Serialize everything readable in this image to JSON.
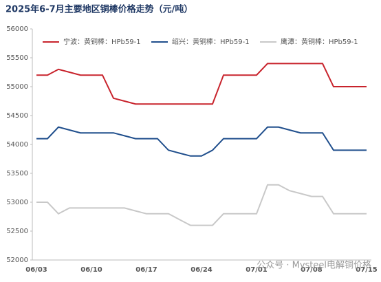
{
  "chart_data": {
    "type": "line",
    "title": "2025年6-7月主要地区铜棒价格走势（元/吨）",
    "annotation": "公众号 · Mysteel电解铜价格",
    "categories": [
      "06/03",
      null,
      null,
      null,
      null,
      "06/10",
      null,
      null,
      null,
      null,
      "06/17",
      null,
      null,
      null,
      null,
      "06/24",
      null,
      null,
      null,
      null,
      "07/01",
      null,
      null,
      null,
      null,
      "07/08",
      null,
      null,
      null,
      null,
      "07/15"
    ],
    "series": [
      {
        "name": "宁波：黄铜棒：HPb59-1",
        "color": "#c8232c",
        "values": [
          55200,
          55200,
          55300,
          55250,
          55200,
          55200,
          55200,
          54800,
          54750,
          54700,
          54700,
          54700,
          54700,
          54700,
          54700,
          54700,
          54700,
          55200,
          55200,
          55200,
          55200,
          55400,
          55400,
          55400,
          55400,
          55400,
          55400,
          55000,
          55000,
          55000,
          55000
        ]
      },
      {
        "name": "绍兴：黄铜棒：HPb59-1",
        "color": "#1f4e8c",
        "values": [
          54100,
          54100,
          54300,
          54250,
          54200,
          54200,
          54200,
          54200,
          54150,
          54100,
          54100,
          54100,
          53900,
          53850,
          53800,
          53800,
          53900,
          54100,
          54100,
          54100,
          54100,
          54300,
          54300,
          54250,
          54200,
          54200,
          54200,
          53900,
          53900,
          53900,
          53900
        ]
      },
      {
        "name": "鹰潭：黄铜棒：HPb59-1",
        "color": "#c8c8c8",
        "values": [
          53000,
          53000,
          52800,
          52900,
          52900,
          52900,
          52900,
          52900,
          52900,
          52850,
          52800,
          52800,
          52800,
          52700,
          52600,
          52600,
          52600,
          52800,
          52800,
          52800,
          52800,
          53300,
          53300,
          53200,
          53150,
          53100,
          53100,
          52800,
          52800,
          52800,
          52800
        ]
      }
    ],
    "ylim": [
      52000,
      56000
    ],
    "yticks": [
      52000,
      52500,
      53000,
      53500,
      54000,
      54500,
      55000,
      55500,
      56000
    ],
    "grid": false
  }
}
